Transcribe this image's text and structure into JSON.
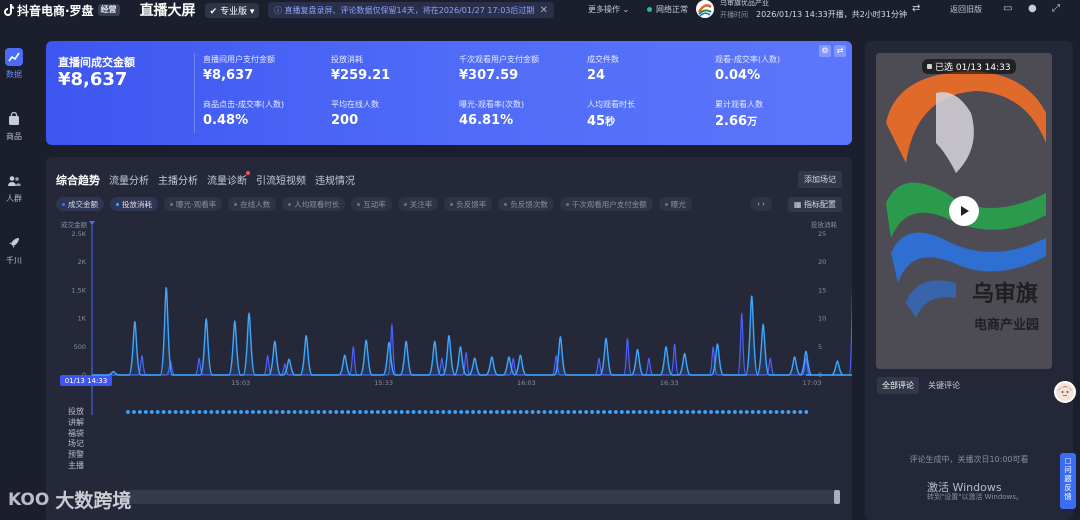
{
  "topbar": {
    "brand": "抖音电商·罗盘",
    "edition_badge": "经营",
    "screen_title": "直播大屏",
    "version_dropdown": "专业版",
    "notice": "直播复盘录屏、评论数据仅保留14天，将在2026/01/27 17:03后过期",
    "more_ops": "更多操作",
    "network_status": "网络正常",
    "shop_name": "乌审旗优品产业",
    "start_label": "开播时间",
    "start_info": "2026/01/13 14:33开播，共2小时31分钟",
    "back_old": "返回旧版"
  },
  "nav": [
    {
      "label": "数据",
      "icon": "chart-icon",
      "active": true
    },
    {
      "label": "商品",
      "icon": "bag-icon",
      "active": false
    },
    {
      "label": "人群",
      "icon": "people-icon",
      "active": false
    },
    {
      "label": "千川",
      "icon": "rocket-icon",
      "active": false
    }
  ],
  "metrics": {
    "main": {
      "label": "直播间成交金额",
      "value": "¥8,637"
    },
    "cells": [
      {
        "label": "直播间用户支付金额",
        "value": "¥8,637",
        "unit": ""
      },
      {
        "label": "投放消耗",
        "value": "¥259.21",
        "unit": ""
      },
      {
        "label": "千次观看用户支付金额",
        "value": "¥307.59",
        "unit": ""
      },
      {
        "label": "成交件数",
        "value": "24",
        "unit": ""
      },
      {
        "label": "观看-成交率(人数)",
        "value": "0.04%",
        "unit": ""
      },
      {
        "label": "商品点击-成交率(人数)",
        "value": "0.48%",
        "unit": ""
      },
      {
        "label": "平均在线人数",
        "value": "200",
        "unit": ""
      },
      {
        "label": "曝光-观看率(次数)",
        "value": "46.81%",
        "unit": ""
      },
      {
        "label": "人均观看时长",
        "value": "45",
        "unit": "秒"
      },
      {
        "label": "累计观看人数",
        "value": "2.66",
        "unit": "万"
      }
    ]
  },
  "trend": {
    "tabs": [
      "综合趋势",
      "流量分析",
      "主播分析",
      "流量诊断",
      "引流短视频",
      "违规情况"
    ],
    "add_scene": "添加场记",
    "chips": [
      {
        "label": "成交金额",
        "on": true,
        "color": "blue"
      },
      {
        "label": "投放消耗",
        "on": true,
        "color": "cyan"
      },
      {
        "label": "曝光-观看率",
        "on": false
      },
      {
        "label": "在线人数",
        "on": false
      },
      {
        "label": "人均观看时长",
        "on": false
      },
      {
        "label": "互动率",
        "on": false
      },
      {
        "label": "关注率",
        "on": false
      },
      {
        "label": "负反馈率",
        "on": false
      },
      {
        "label": "负反馈次数",
        "on": false
      },
      {
        "label": "千次观看用户支付金额",
        "on": false
      },
      {
        "label": "曝光",
        "on": false
      }
    ],
    "chip_nav": "‹ ›",
    "config_btn": "指标配置",
    "lanes": [
      "投放",
      "讲解",
      "福袋",
      "场记",
      "预警",
      "主播"
    ],
    "cursor_label": "01/13 14:33"
  },
  "chart_data": {
    "type": "line",
    "x_start": "14:33",
    "x_end": "17:03",
    "x_tick_labels": [
      "15:03",
      "15:33",
      "16:03",
      "16:33",
      "17:03"
    ],
    "y_left": {
      "label": "成交金额",
      "ticks": [
        "0",
        "500",
        "1K",
        "1.5K",
        "2K",
        "2.5K"
      ],
      "range": [
        0,
        2500
      ]
    },
    "y_right": {
      "label": "投放消耗",
      "ticks": [
        "0",
        "5",
        "10",
        "15",
        "20",
        "25"
      ],
      "range": [
        0,
        25
      ]
    },
    "series": [
      {
        "name": "成交金额",
        "color": "#3ea6ff",
        "points": [
          [
            0.15,
            60
          ],
          [
            0.3,
            950
          ],
          [
            0.52,
            1550
          ],
          [
            0.8,
            1000
          ],
          [
            1.0,
            960
          ],
          [
            1.1,
            1100
          ],
          [
            1.28,
            600
          ],
          [
            1.38,
            280
          ],
          [
            1.5,
            700
          ],
          [
            1.77,
            350
          ],
          [
            1.92,
            620
          ],
          [
            2.08,
            580
          ],
          [
            2.2,
            600
          ],
          [
            2.4,
            600
          ],
          [
            2.5,
            700
          ],
          [
            2.58,
            500
          ],
          [
            2.68,
            300
          ],
          [
            2.8,
            320
          ],
          [
            2.92,
            320
          ],
          [
            3.0,
            350
          ],
          [
            3.28,
            680
          ],
          [
            3.6,
            650
          ],
          [
            3.82,
            450
          ],
          [
            4.02,
            500
          ],
          [
            4.15,
            380
          ],
          [
            4.38,
            550
          ],
          [
            4.62,
            1400
          ],
          [
            4.7,
            900
          ],
          [
            4.92,
            320
          ],
          [
            5.0,
            420
          ],
          [
            5.22,
            250
          ],
          [
            5.45,
            380
          ]
        ]
      },
      {
        "name": "投放消耗",
        "color": "#4e60ff",
        "points": [
          [
            0.35,
            3.5
          ],
          [
            0.55,
            2.5
          ],
          [
            0.75,
            3
          ],
          [
            1.23,
            3.5
          ],
          [
            1.35,
            2
          ],
          [
            1.83,
            5
          ],
          [
            2.1,
            9
          ],
          [
            2.45,
            3
          ],
          [
            2.62,
            4
          ],
          [
            2.95,
            3
          ],
          [
            3.25,
            3.5
          ],
          [
            3.55,
            3
          ],
          [
            3.75,
            6.5
          ],
          [
            3.9,
            3
          ],
          [
            4.08,
            5.5
          ],
          [
            4.35,
            5
          ],
          [
            4.55,
            11
          ],
          [
            4.75,
            3
          ],
          [
            5.0,
            3
          ],
          [
            5.33,
            18
          ],
          [
            5.5,
            3
          ]
        ]
      }
    ]
  },
  "right": {
    "video_time": "已选 01/13 14:33",
    "comment_tabs": [
      "全部评论",
      "关键评论"
    ],
    "comment_status": "评论生成中，关播次日10:00可看",
    "win_activate": "激活 Windows",
    "win_sub": "转到\"设置\"以激活 Windows。",
    "feedback": "问题反馈"
  },
  "watermark": {
    "mark": "KOO",
    "text": "大数跨境"
  },
  "colors": {
    "accent": "#4a6cf7",
    "bg": "#1b1e2d",
    "panel": "#242839"
  }
}
